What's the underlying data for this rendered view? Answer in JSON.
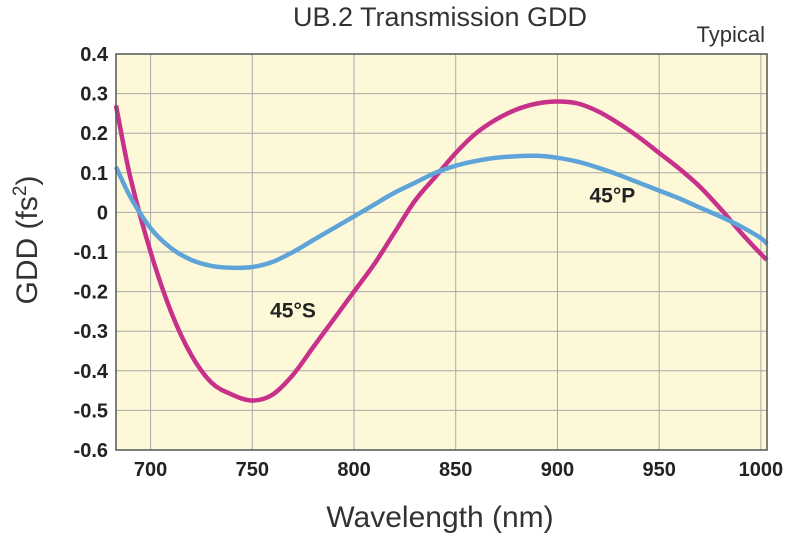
{
  "chart_data": {
    "type": "line",
    "title": "UB.2 Transmission GDD",
    "note": "Typical",
    "xlabel": "Wavelength (nm)",
    "ylabel_main": "GDD (fs",
    "ylabel_sup": "2",
    "ylabel_close": ")",
    "xlim": [
      683,
      1003
    ],
    "ylim": [
      -0.6,
      0.4
    ],
    "xticks": [
      700,
      750,
      800,
      850,
      900,
      950,
      1000
    ],
    "xtick_labels": [
      "700",
      "750",
      "800",
      "850",
      "900",
      "950",
      "1000"
    ],
    "yticks": [
      0.4,
      0.3,
      0.2,
      0.1,
      0,
      -0.1,
      -0.2,
      -0.3,
      -0.4,
      -0.5,
      -0.6
    ],
    "ytick_labels": [
      "0.4",
      "0.3",
      "0.2",
      "0.1",
      "0",
      "-0.1",
      "-0.2",
      "-0.3",
      "-0.4",
      "-0.5",
      "-0.6"
    ],
    "grid": true,
    "colors": {
      "plot_bg": "#fdf9d8",
      "grid": "#a8a8a8",
      "frame": "#555555"
    },
    "series": [
      {
        "name": "45°S",
        "color": "#c8318a",
        "points": [
          [
            683,
            0.27
          ],
          [
            690,
            0.09
          ],
          [
            700,
            -0.1
          ],
          [
            710,
            -0.25
          ],
          [
            720,
            -0.36
          ],
          [
            730,
            -0.43
          ],
          [
            740,
            -0.46
          ],
          [
            750,
            -0.475
          ],
          [
            760,
            -0.46
          ],
          [
            770,
            -0.41
          ],
          [
            780,
            -0.34
          ],
          [
            790,
            -0.27
          ],
          [
            800,
            -0.2
          ],
          [
            810,
            -0.13
          ],
          [
            820,
            -0.05
          ],
          [
            830,
            0.03
          ],
          [
            840,
            0.09
          ],
          [
            850,
            0.15
          ],
          [
            860,
            0.2
          ],
          [
            870,
            0.235
          ],
          [
            880,
            0.26
          ],
          [
            890,
            0.275
          ],
          [
            900,
            0.28
          ],
          [
            910,
            0.275
          ],
          [
            920,
            0.255
          ],
          [
            930,
            0.225
          ],
          [
            940,
            0.19
          ],
          [
            950,
            0.15
          ],
          [
            960,
            0.11
          ],
          [
            970,
            0.065
          ],
          [
            980,
            0.01
          ],
          [
            990,
            -0.05
          ],
          [
            1000,
            -0.105
          ],
          [
            1003,
            -0.12
          ]
        ]
      },
      {
        "name": "45°P",
        "color": "#5fa4d8",
        "points": [
          [
            683,
            0.115
          ],
          [
            690,
            0.04
          ],
          [
            700,
            -0.04
          ],
          [
            710,
            -0.09
          ],
          [
            720,
            -0.12
          ],
          [
            730,
            -0.135
          ],
          [
            740,
            -0.14
          ],
          [
            750,
            -0.138
          ],
          [
            760,
            -0.125
          ],
          [
            770,
            -0.1
          ],
          [
            780,
            -0.07
          ],
          [
            790,
            -0.04
          ],
          [
            800,
            -0.01
          ],
          [
            810,
            0.02
          ],
          [
            820,
            0.05
          ],
          [
            830,
            0.075
          ],
          [
            840,
            0.1
          ],
          [
            850,
            0.118
          ],
          [
            860,
            0.13
          ],
          [
            870,
            0.138
          ],
          [
            880,
            0.142
          ],
          [
            890,
            0.143
          ],
          [
            900,
            0.138
          ],
          [
            910,
            0.128
          ],
          [
            920,
            0.113
          ],
          [
            930,
            0.095
          ],
          [
            940,
            0.075
          ],
          [
            950,
            0.055
          ],
          [
            960,
            0.035
          ],
          [
            970,
            0.012
          ],
          [
            980,
            -0.01
          ],
          [
            990,
            -0.035
          ],
          [
            1000,
            -0.065
          ],
          [
            1003,
            -0.08
          ]
        ]
      }
    ],
    "annotations": [
      {
        "text": "45°S",
        "x": 770,
        "y": -0.265
      },
      {
        "text": "45°P",
        "x": 927,
        "y": 0.025
      }
    ]
  }
}
